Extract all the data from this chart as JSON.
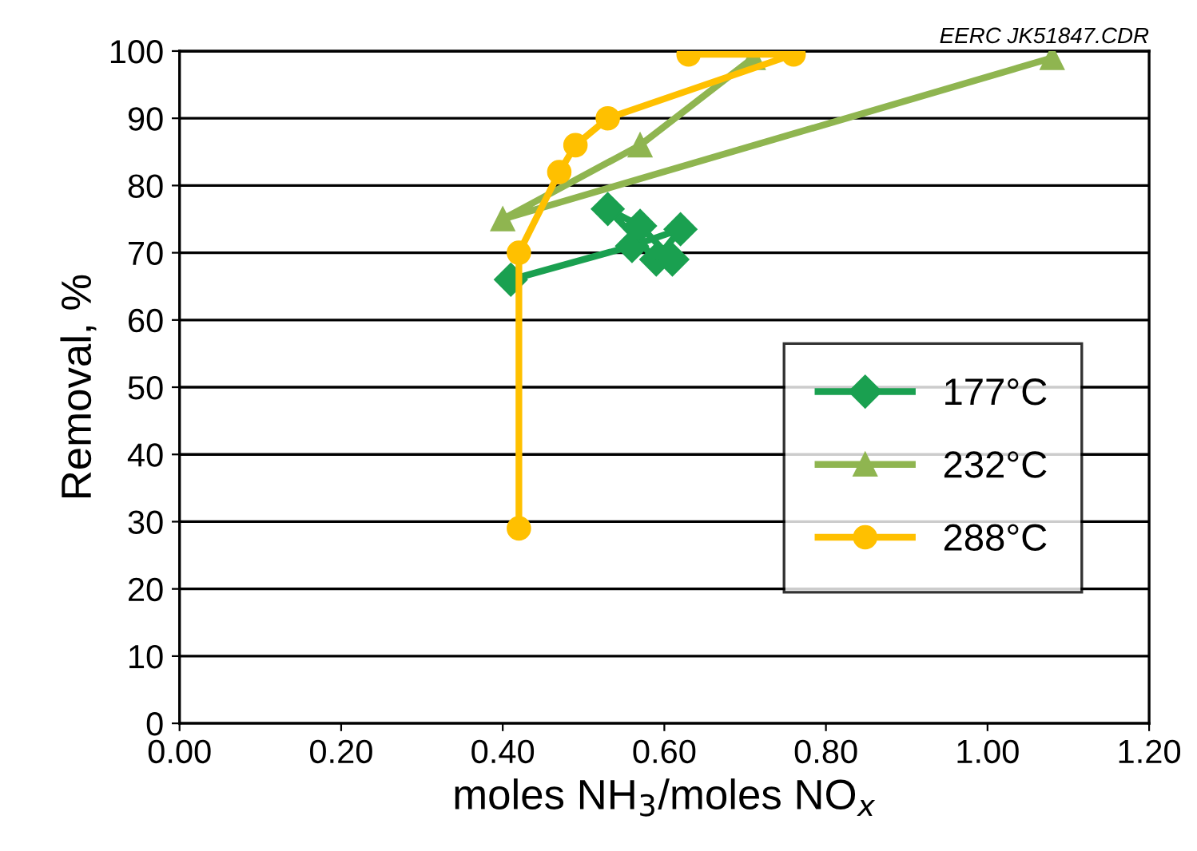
{
  "chart_data": {
    "type": "line",
    "xlabel": "moles NH$_{3}$/moles NO$_{x}$",
    "ylabel": "Removal, %",
    "annotations": [
      "EERC JK51847.CDR"
    ],
    "xlim": [
      0,
      1.2
    ],
    "xticks": [
      {
        "value": 0,
        "label": "0.00"
      },
      {
        "value": 0.2,
        "label": "0.20"
      },
      {
        "value": 0.4,
        "label": "0.40"
      },
      {
        "value": 0.6,
        "label": "0.60"
      },
      {
        "value": 0.8,
        "label": "0.80"
      },
      {
        "value": 1.0,
        "label": "1.00"
      },
      {
        "value": 1.2,
        "label": "1.20"
      }
    ],
    "ylim": [
      0,
      100
    ],
    "yticks": [
      0,
      10,
      20,
      30,
      40,
      50,
      60,
      70,
      80,
      90,
      100
    ],
    "grid": "y",
    "legend": "right",
    "series": [
      {
        "name": "177°C",
        "color": "#1aa050",
        "marker": "diamond",
        "x": [
          0.41,
          0.56,
          0.62,
          0.59,
          0.53,
          0.57,
          0.61
        ],
        "values": [
          66,
          71,
          73.5,
          69,
          76.5,
          74,
          69
        ]
      },
      {
        "name": "232°C",
        "color": "#8fb550",
        "marker": "triangle",
        "x": [
          0.71,
          0.57,
          0.4,
          1.08
        ],
        "values": [
          99,
          86,
          75,
          99
        ]
      },
      {
        "name": "288°C",
        "color": "#ffc000",
        "marker": "circle",
        "x": [
          0.42,
          0.42,
          0.47,
          0.49,
          0.53,
          0.76,
          0.63
        ],
        "values": [
          29,
          70,
          82,
          86,
          90,
          99.5,
          99.5
        ]
      }
    ]
  }
}
